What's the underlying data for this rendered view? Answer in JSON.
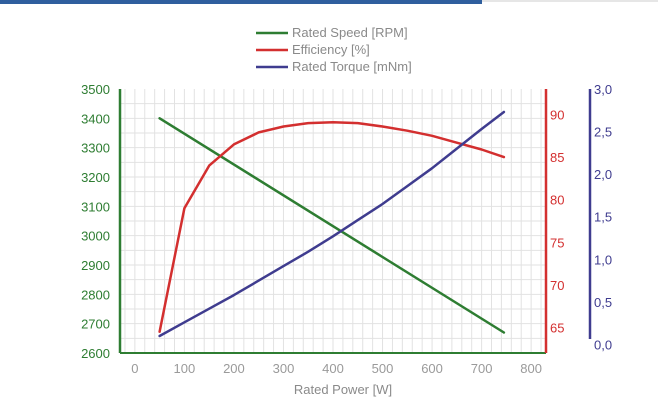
{
  "colors": {
    "top_bar": "#2f5f9e",
    "grid": "#e2e2e2",
    "x_tick": "#9a9a9a"
  },
  "chart_data": {
    "type": "line",
    "xlabel": "Rated Power [W]",
    "xlim": [
      -30,
      830
    ],
    "x_ticks": [
      0,
      100,
      200,
      300,
      400,
      500,
      600,
      700,
      800
    ],
    "grid": true,
    "legend_position": "top-center",
    "axes": [
      {
        "id": "speed",
        "side": "left",
        "color": "#2e7d32",
        "ylim": [
          2600,
          3500
        ],
        "ticks": [
          2600,
          2700,
          2800,
          2900,
          3000,
          3100,
          3200,
          3300,
          3400,
          3500
        ],
        "tick_labels": [
          "2600",
          "2700",
          "2800",
          "2900",
          "3000",
          "3100",
          "3200",
          "3300",
          "3400",
          "3500"
        ]
      },
      {
        "id": "efficiency",
        "side": "right",
        "color": "#d32f2f",
        "ylim": [
          62,
          93
        ],
        "ticks": [
          65,
          70,
          75,
          80,
          85,
          90
        ],
        "tick_labels": [
          "65",
          "70",
          "75",
          "80",
          "85",
          "90"
        ]
      },
      {
        "id": "torque",
        "side": "right-outer",
        "color": "#3f3c8f",
        "ylim": [
          -0.1,
          3.0
        ],
        "ticks": [
          0.0,
          0.5,
          1.0,
          1.5,
          2.0,
          2.5,
          3.0
        ],
        "tick_labels": [
          "0,0",
          "0,5",
          "1,0",
          "1,5",
          "2,0",
          "2,5",
          "3,0"
        ]
      }
    ],
    "series": [
      {
        "name": "Rated Speed [RPM]",
        "axis": "speed",
        "color": "#2e7d32",
        "x": [
          50,
          745
        ],
        "y": [
          3400,
          2670
        ]
      },
      {
        "name": "Efficiency [%]",
        "axis": "efficiency",
        "color": "#d32f2f",
        "x": [
          50,
          100,
          150,
          200,
          250,
          300,
          350,
          400,
          450,
          500,
          550,
          600,
          650,
          700,
          745
        ],
        "y": [
          64.5,
          79.0,
          84.0,
          86.5,
          87.9,
          88.6,
          89.0,
          89.1,
          89.0,
          88.6,
          88.1,
          87.5,
          86.7,
          85.9,
          85.0
        ]
      },
      {
        "name": "Rated Torque [mNm]",
        "axis": "torque",
        "color": "#3f3c8f",
        "x": [
          50,
          100,
          150,
          200,
          250,
          300,
          350,
          400,
          450,
          500,
          550,
          600,
          650,
          700,
          745
        ],
        "y": [
          0.1,
          0.26,
          0.42,
          0.58,
          0.75,
          0.92,
          1.09,
          1.27,
          1.46,
          1.65,
          1.86,
          2.07,
          2.3,
          2.53,
          2.73
        ]
      }
    ]
  }
}
